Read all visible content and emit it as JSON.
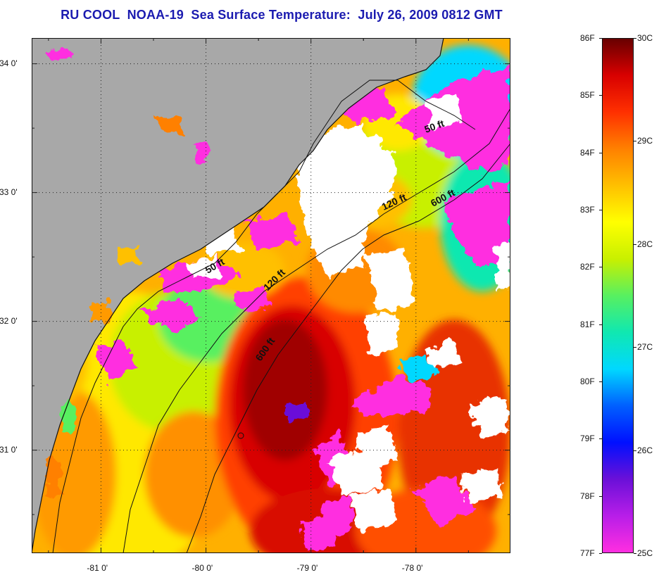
{
  "title": "RU COOL  NOAA-19  Sea Surface Temperature:  July 26, 2009 0812 GMT",
  "map": {
    "lat_ticks": [
      {
        "value": 34,
        "label": "34 0'"
      },
      {
        "value": 33,
        "label": "33 0'"
      },
      {
        "value": 32,
        "label": "32 0'"
      },
      {
        "value": 31,
        "label": "31 0'"
      }
    ],
    "lon_ticks": [
      {
        "value": -81,
        "label": "-81 0'"
      },
      {
        "value": -80,
        "label": "-80 0'"
      },
      {
        "value": -79,
        "label": "-79 0'"
      },
      {
        "value": -78,
        "label": "-78 0'"
      }
    ],
    "lon_range": [
      -81.66,
      -77.1
    ],
    "lat_range": [
      30.2,
      34.2
    ],
    "contour_labels": [
      {
        "text": "50 ft"
      },
      {
        "text": "120 ft"
      },
      {
        "text": "600 ft"
      },
      {
        "text": "50 ft"
      },
      {
        "text": "120 ft"
      },
      {
        "text": "600 ft"
      }
    ],
    "colors": {
      "land": "#a8a8a8",
      "cloud": "#ffffff",
      "coastline": "#111111"
    }
  },
  "colorbar": {
    "fahrenheit": [
      {
        "value": 86,
        "label": "86F"
      },
      {
        "value": 85,
        "label": "85F"
      },
      {
        "value": 84,
        "label": "84F"
      },
      {
        "value": 83,
        "label": "83F"
      },
      {
        "value": 82,
        "label": "82F"
      },
      {
        "value": 81,
        "label": "81F"
      },
      {
        "value": 80,
        "label": "80F"
      },
      {
        "value": 79,
        "label": "79F"
      },
      {
        "value": 78,
        "label": "78F"
      },
      {
        "value": 77,
        "label": "77F"
      }
    ],
    "celsius": [
      {
        "value": 30,
        "label": "30C"
      },
      {
        "value": 29,
        "label": "29C"
      },
      {
        "value": 28,
        "label": "28C"
      },
      {
        "value": 27,
        "label": "27C"
      },
      {
        "value": 26,
        "label": "26C"
      },
      {
        "value": 25,
        "label": "25C"
      }
    ],
    "range_f": [
      77,
      86
    ],
    "stops": [
      "#ff2ee0",
      "#b81ee8",
      "#6a10d8",
      "#0010ff",
      "#0060ff",
      "#00d8ff",
      "#10e8b0",
      "#58f060",
      "#c8f000",
      "#ffff00",
      "#ffc000",
      "#ff8000",
      "#ff3000",
      "#d80000",
      "#680000"
    ]
  }
}
